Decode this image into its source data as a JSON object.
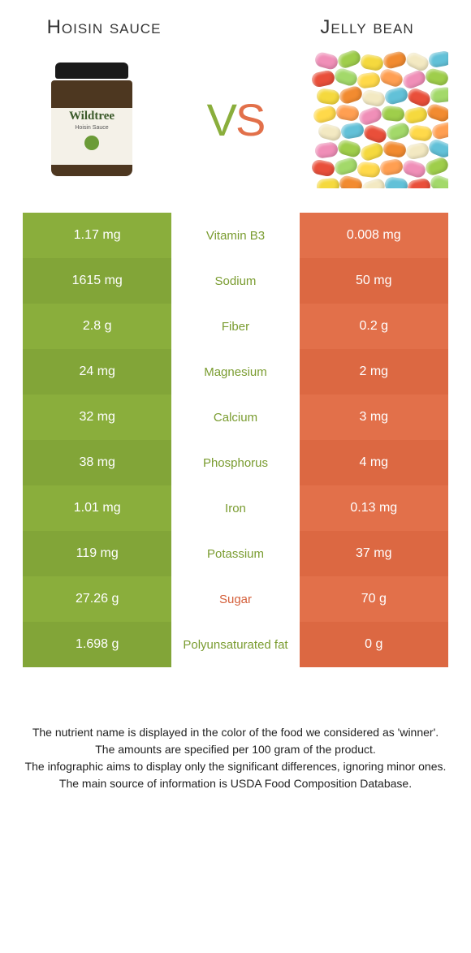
{
  "left": {
    "title": "Hoisin sauce"
  },
  "right": {
    "title": "Jelly bean"
  },
  "vs": {
    "v": "V",
    "s": "S"
  },
  "jar": {
    "brand": "Wildtree",
    "sub": "Hoisin Sauce"
  },
  "colors": {
    "green_a": "#8aae3c",
    "green_b": "#82a538",
    "orange_a": "#e2704a",
    "orange_b": "#dc6842",
    "label_green": "#7a9c30",
    "label_orange": "#d45f3a",
    "bean_palette": [
      "#f08fb8",
      "#9fce4b",
      "#f5d93e",
      "#f28b30",
      "#f3e9c2",
      "#62c1d8",
      "#e94f3a",
      "#a3d96a",
      "#ffd94a",
      "#ff9f52"
    ]
  },
  "rows": [
    {
      "label": "Vitamin B3",
      "left": "1.17 mg",
      "right": "0.008 mg",
      "winner": "left"
    },
    {
      "label": "Sodium",
      "left": "1615 mg",
      "right": "50 mg",
      "winner": "left"
    },
    {
      "label": "Fiber",
      "left": "2.8 g",
      "right": "0.2 g",
      "winner": "left"
    },
    {
      "label": "Magnesium",
      "left": "24 mg",
      "right": "2 mg",
      "winner": "left"
    },
    {
      "label": "Calcium",
      "left": "32 mg",
      "right": "3 mg",
      "winner": "left"
    },
    {
      "label": "Phosphorus",
      "left": "38 mg",
      "right": "4 mg",
      "winner": "left"
    },
    {
      "label": "Iron",
      "left": "1.01 mg",
      "right": "0.13 mg",
      "winner": "left"
    },
    {
      "label": "Potassium",
      "left": "119 mg",
      "right": "37 mg",
      "winner": "left"
    },
    {
      "label": "Sugar",
      "left": "27.26 g",
      "right": "70 g",
      "winner": "right"
    },
    {
      "label": "Polyunsaturated fat",
      "left": "1.698 g",
      "right": "0 g",
      "winner": "left"
    }
  ],
  "footer": {
    "l1": "The nutrient name is displayed in the color of the food we considered as 'winner'.",
    "l2": "The amounts are specified per 100 gram of the product.",
    "l3": "The infographic aims to display only the significant differences, ignoring minor ones.",
    "l4": "The main source of information is USDA Food Composition Database."
  },
  "beans_layout": [
    [
      6,
      4,
      0,
      15
    ],
    [
      34,
      2,
      1,
      -20
    ],
    [
      62,
      6,
      2,
      10
    ],
    [
      90,
      3,
      3,
      -15
    ],
    [
      118,
      5,
      4,
      25
    ],
    [
      146,
      2,
      5,
      -10
    ],
    [
      2,
      26,
      6,
      -12
    ],
    [
      30,
      24,
      7,
      18
    ],
    [
      58,
      28,
      8,
      -8
    ],
    [
      86,
      25,
      9,
      20
    ],
    [
      114,
      27,
      0,
      -22
    ],
    [
      142,
      24,
      1,
      14
    ],
    [
      8,
      48,
      2,
      8
    ],
    [
      36,
      46,
      3,
      -18
    ],
    [
      64,
      50,
      4,
      12
    ],
    [
      92,
      47,
      5,
      -14
    ],
    [
      120,
      49,
      6,
      22
    ],
    [
      148,
      46,
      7,
      -6
    ],
    [
      4,
      70,
      8,
      -16
    ],
    [
      32,
      68,
      9,
      10
    ],
    [
      60,
      72,
      0,
      -20
    ],
    [
      88,
      69,
      1,
      6
    ],
    [
      116,
      71,
      2,
      -12
    ],
    [
      144,
      68,
      3,
      18
    ],
    [
      10,
      92,
      4,
      14
    ],
    [
      38,
      90,
      5,
      -10
    ],
    [
      66,
      94,
      6,
      20
    ],
    [
      94,
      91,
      7,
      -18
    ],
    [
      122,
      93,
      8,
      8
    ],
    [
      150,
      90,
      9,
      -14
    ],
    [
      6,
      114,
      0,
      -8
    ],
    [
      34,
      112,
      1,
      16
    ],
    [
      62,
      116,
      2,
      -20
    ],
    [
      90,
      113,
      3,
      10
    ],
    [
      118,
      115,
      4,
      -12
    ],
    [
      146,
      112,
      5,
      22
    ],
    [
      2,
      136,
      6,
      12
    ],
    [
      30,
      134,
      7,
      -16
    ],
    [
      58,
      138,
      8,
      6
    ],
    [
      86,
      135,
      9,
      -10
    ],
    [
      114,
      137,
      0,
      18
    ],
    [
      142,
      134,
      1,
      -20
    ],
    [
      8,
      158,
      2,
      -6
    ],
    [
      36,
      156,
      3,
      14
    ],
    [
      64,
      160,
      4,
      -18
    ],
    [
      92,
      157,
      5,
      8
    ],
    [
      120,
      159,
      6,
      -12
    ],
    [
      148,
      156,
      7,
      20
    ]
  ]
}
